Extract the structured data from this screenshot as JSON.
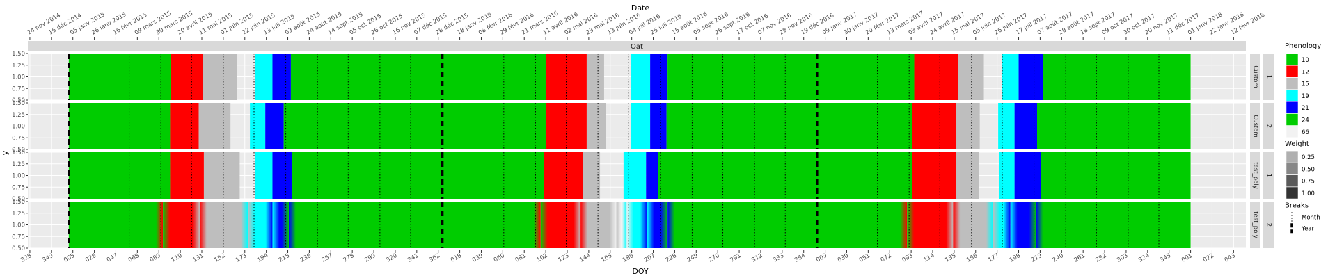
{
  "chart_data": {
    "type": "heatmap",
    "title": "",
    "top_axis_title": "Date",
    "bottom_axis_title": "DOY",
    "y_axis_title": "y",
    "facet_title": "Oat",
    "day_domain": [
      -40,
      1150
    ],
    "y_range": [
      0.5,
      1.5
    ],
    "y_ticks": [
      "1.50",
      "1.25",
      "1.00",
      "0.75",
      "0.50"
    ],
    "top_ticks": [
      {
        "day": -38,
        "label": "24 nov 2014"
      },
      {
        "day": -17,
        "label": "15 déc 2014"
      },
      {
        "day": 4,
        "label": "05 janv 2015"
      },
      {
        "day": 25,
        "label": "26 janv 2015"
      },
      {
        "day": 46,
        "label": "16 févr 2015"
      },
      {
        "day": 67,
        "label": "09 mars 2015"
      },
      {
        "day": 88,
        "label": "30 mars 2015"
      },
      {
        "day": 109,
        "label": "20 avril 2015"
      },
      {
        "day": 130,
        "label": "11 mai 2015"
      },
      {
        "day": 151,
        "label": "01 juin 2015"
      },
      {
        "day": 172,
        "label": "22 juin 2015"
      },
      {
        "day": 193,
        "label": "13 juil 2015"
      },
      {
        "day": 214,
        "label": "03 août 2015"
      },
      {
        "day": 235,
        "label": "24 août 2015"
      },
      {
        "day": 256,
        "label": "14 sept 2015"
      },
      {
        "day": 277,
        "label": "05 oct 2015"
      },
      {
        "day": 298,
        "label": "26 oct 2015"
      },
      {
        "day": 319,
        "label": "16 nov 2015"
      },
      {
        "day": 340,
        "label": "07 déc 2015"
      },
      {
        "day": 361,
        "label": "28 déc 2015"
      },
      {
        "day": 382,
        "label": "18 janv 2016"
      },
      {
        "day": 403,
        "label": "08 févr 2016"
      },
      {
        "day": 424,
        "label": "29 févr 2016"
      },
      {
        "day": 445,
        "label": "21 mars 2016"
      },
      {
        "day": 466,
        "label": "11 avril 2016"
      },
      {
        "day": 487,
        "label": "02 mai 2016"
      },
      {
        "day": 508,
        "label": "23 mai 2016"
      },
      {
        "day": 529,
        "label": "13 juin 2016"
      },
      {
        "day": 550,
        "label": "04 juil 2016"
      },
      {
        "day": 571,
        "label": "25 juil 2016"
      },
      {
        "day": 592,
        "label": "15 août 2016"
      },
      {
        "day": 613,
        "label": "05 sept 2016"
      },
      {
        "day": 634,
        "label": "26 sept 2016"
      },
      {
        "day": 655,
        "label": "17 oct 2016"
      },
      {
        "day": 676,
        "label": "07 nov 2016"
      },
      {
        "day": 697,
        "label": "28 nov 2016"
      },
      {
        "day": 718,
        "label": "19 déc 2016"
      },
      {
        "day": 739,
        "label": "09 janv 2017"
      },
      {
        "day": 760,
        "label": "30 janv 2017"
      },
      {
        "day": 781,
        "label": "20 févr 2017"
      },
      {
        "day": 802,
        "label": "13 mars 2017"
      },
      {
        "day": 823,
        "label": "03 avril 2017"
      },
      {
        "day": 844,
        "label": "24 avril 2017"
      },
      {
        "day": 865,
        "label": "15 mai 2017"
      },
      {
        "day": 886,
        "label": "05 juin 2017"
      },
      {
        "day": 907,
        "label": "26 juin 2017"
      },
      {
        "day": 928,
        "label": "17 juil 2017"
      },
      {
        "day": 949,
        "label": "07 août 2017"
      },
      {
        "day": 970,
        "label": "28 août 2017"
      },
      {
        "day": 991,
        "label": "18 sept 2017"
      },
      {
        "day": 1012,
        "label": "09 oct 2017"
      },
      {
        "day": 1033,
        "label": "30 oct 2017"
      },
      {
        "day": 1054,
        "label": "20 nov 2017"
      },
      {
        "day": 1075,
        "label": "11 déc 2017"
      },
      {
        "day": 1096,
        "label": "01 janv 2018"
      },
      {
        "day": 1117,
        "label": "22 janv 2018"
      },
      {
        "day": 1138,
        "label": "12 févr 2018"
      }
    ],
    "bottom_ticks": [
      {
        "day": -38,
        "label": "328"
      },
      {
        "day": -17,
        "label": "349"
      },
      {
        "day": 4,
        "label": "005"
      },
      {
        "day": 25,
        "label": "026"
      },
      {
        "day": 46,
        "label": "047"
      },
      {
        "day": 67,
        "label": "068"
      },
      {
        "day": 88,
        "label": "089"
      },
      {
        "day": 109,
        "label": "110"
      },
      {
        "day": 130,
        "label": "131"
      },
      {
        "day": 151,
        "label": "152"
      },
      {
        "day": 172,
        "label": "173"
      },
      {
        "day": 193,
        "label": "194"
      },
      {
        "day": 214,
        "label": "215"
      },
      {
        "day": 235,
        "label": "236"
      },
      {
        "day": 256,
        "label": "257"
      },
      {
        "day": 277,
        "label": "278"
      },
      {
        "day": 298,
        "label": "299"
      },
      {
        "day": 319,
        "label": "320"
      },
      {
        "day": 340,
        "label": "341"
      },
      {
        "day": 361,
        "label": "362"
      },
      {
        "day": 382,
        "label": "018"
      },
      {
        "day": 403,
        "label": "039"
      },
      {
        "day": 424,
        "label": "060"
      },
      {
        "day": 445,
        "label": "081"
      },
      {
        "day": 466,
        "label": "102"
      },
      {
        "day": 487,
        "label": "123"
      },
      {
        "day": 508,
        "label": "144"
      },
      {
        "day": 529,
        "label": "165"
      },
      {
        "day": 550,
        "label": "186"
      },
      {
        "day": 571,
        "label": "207"
      },
      {
        "day": 592,
        "label": "228"
      },
      {
        "day": 613,
        "label": "249"
      },
      {
        "day": 634,
        "label": "270"
      },
      {
        "day": 655,
        "label": "291"
      },
      {
        "day": 676,
        "label": "312"
      },
      {
        "day": 697,
        "label": "333"
      },
      {
        "day": 718,
        "label": "354"
      },
      {
        "day": 739,
        "label": "009"
      },
      {
        "day": 760,
        "label": "030"
      },
      {
        "day": 781,
        "label": "051"
      },
      {
        "day": 802,
        "label": "072"
      },
      {
        "day": 823,
        "label": "093"
      },
      {
        "day": 844,
        "label": "114"
      },
      {
        "day": 865,
        "label": "135"
      },
      {
        "day": 886,
        "label": "156"
      },
      {
        "day": 907,
        "label": "177"
      },
      {
        "day": 928,
        "label": "198"
      },
      {
        "day": 949,
        "label": "219"
      },
      {
        "day": 970,
        "label": "240"
      },
      {
        "day": 991,
        "label": "261"
      },
      {
        "day": 1012,
        "label": "282"
      },
      {
        "day": 1033,
        "label": "303"
      },
      {
        "day": 1054,
        "label": "324"
      },
      {
        "day": 1075,
        "label": "345"
      },
      {
        "day": 1096,
        "label": "001"
      },
      {
        "day": 1117,
        "label": "022"
      },
      {
        "day": 1138,
        "label": "043"
      }
    ],
    "year_breaks": [
      0,
      365,
      731
    ],
    "month_breaks": [
      59,
      90,
      120,
      151,
      181,
      212,
      243,
      273,
      304,
      334,
      425,
      456,
      486,
      517,
      547,
      578,
      609,
      639,
      670,
      700,
      790,
      821,
      851,
      882,
      912,
      943,
      974,
      1004,
      1035,
      1065
    ],
    "phenology_colors": {
      "10": "#00CC00",
      "12": "#FF0000",
      "15": "#BEBEBE",
      "19": "#00FFFF",
      "21": "#0000FF",
      "24": "#00CC00",
      "66": "#F2F2F2"
    },
    "panels": [
      {
        "strip": [
          "Custom",
          "1"
        ],
        "segments": [
          {
            "start": 0,
            "end": 100,
            "code": "10"
          },
          {
            "start": 100,
            "end": 131,
            "code": "12"
          },
          {
            "start": 131,
            "end": 164,
            "code": "15"
          },
          {
            "start": 182,
            "end": 199,
            "code": "19"
          },
          {
            "start": 199,
            "end": 217,
            "code": "21"
          },
          {
            "start": 217,
            "end": 466,
            "code": "24"
          },
          {
            "start": 466,
            "end": 506,
            "code": "12"
          },
          {
            "start": 506,
            "end": 523,
            "code": "15"
          },
          {
            "start": 549,
            "end": 568,
            "code": "19"
          },
          {
            "start": 568,
            "end": 585,
            "code": "21"
          },
          {
            "start": 585,
            "end": 826,
            "code": "24"
          },
          {
            "start": 826,
            "end": 869,
            "code": "12"
          },
          {
            "start": 869,
            "end": 894,
            "code": "15"
          },
          {
            "start": 912,
            "end": 928,
            "code": "19"
          },
          {
            "start": 928,
            "end": 952,
            "code": "21"
          },
          {
            "start": 952,
            "end": 1096,
            "code": "24"
          }
        ]
      },
      {
        "strip": [
          "Custom",
          "2"
        ],
        "segments": [
          {
            "start": 0,
            "end": 99,
            "code": "10"
          },
          {
            "start": 99,
            "end": 127,
            "code": "12"
          },
          {
            "start": 127,
            "end": 158,
            "code": "15"
          },
          {
            "start": 177,
            "end": 192,
            "code": "19"
          },
          {
            "start": 192,
            "end": 210,
            "code": "21"
          },
          {
            "start": 210,
            "end": 466,
            "code": "24"
          },
          {
            "start": 466,
            "end": 506,
            "code": "12"
          },
          {
            "start": 506,
            "end": 525,
            "code": "15"
          },
          {
            "start": 549,
            "end": 568,
            "code": "19"
          },
          {
            "start": 568,
            "end": 584,
            "code": "21"
          },
          {
            "start": 584,
            "end": 824,
            "code": "24"
          },
          {
            "start": 824,
            "end": 867,
            "code": "12"
          },
          {
            "start": 867,
            "end": 890,
            "code": "15"
          },
          {
            "start": 908,
            "end": 924,
            "code": "19"
          },
          {
            "start": 924,
            "end": 946,
            "code": "21"
          },
          {
            "start": 946,
            "end": 1096,
            "code": "24"
          }
        ]
      },
      {
        "strip": [
          "test_poly",
          "1"
        ],
        "segments": [
          {
            "start": 0,
            "end": 99,
            "code": "10"
          },
          {
            "start": 99,
            "end": 132,
            "code": "12"
          },
          {
            "start": 132,
            "end": 167,
            "code": "15"
          },
          {
            "start": 182,
            "end": 199,
            "code": "19"
          },
          {
            "start": 199,
            "end": 218,
            "code": "21"
          },
          {
            "start": 218,
            "end": 464,
            "code": "24"
          },
          {
            "start": 464,
            "end": 502,
            "code": "12"
          },
          {
            "start": 502,
            "end": 519,
            "code": "15"
          },
          {
            "start": 542,
            "end": 564,
            "code": "19"
          },
          {
            "start": 564,
            "end": 576,
            "code": "21"
          },
          {
            "start": 576,
            "end": 824,
            "code": "24"
          },
          {
            "start": 824,
            "end": 867,
            "code": "12"
          },
          {
            "start": 867,
            "end": 889,
            "code": "15"
          },
          {
            "start": 909,
            "end": 924,
            "code": "19"
          },
          {
            "start": 924,
            "end": 950,
            "code": "21"
          },
          {
            "start": 950,
            "end": 1096,
            "code": "24"
          }
        ]
      },
      {
        "strip": [
          "test_poly",
          "2"
        ],
        "segments": [
          {
            "start": 0,
            "end": 92,
            "code": "10"
          },
          {
            "start": 92,
            "end": 128,
            "code": "12"
          },
          {
            "start": 128,
            "end": 175,
            "code": "15"
          },
          {
            "start": 175,
            "end": 199,
            "code": "19"
          },
          {
            "start": 199,
            "end": 215,
            "code": "21"
          },
          {
            "start": 215,
            "end": 461,
            "code": "24"
          },
          {
            "start": 461,
            "end": 500,
            "code": "12"
          },
          {
            "start": 500,
            "end": 535,
            "code": "15"
          },
          {
            "start": 535,
            "end": 545,
            "code": "66"
          },
          {
            "start": 545,
            "end": 565,
            "code": "19"
          },
          {
            "start": 565,
            "end": 585,
            "code": "21"
          },
          {
            "start": 585,
            "end": 819,
            "code": "24"
          },
          {
            "start": 819,
            "end": 864,
            "code": "12"
          },
          {
            "start": 864,
            "end": 903,
            "code": "15"
          },
          {
            "start": 903,
            "end": 920,
            "code": "19"
          },
          {
            "start": 920,
            "end": 945,
            "code": "21"
          },
          {
            "start": 945,
            "end": 1096,
            "code": "24"
          }
        ]
      }
    ],
    "legend_phenology": {
      "title": "Phenology",
      "items": [
        {
          "label": "10",
          "color": "#00CC00"
        },
        {
          "label": "12",
          "color": "#FF0000"
        },
        {
          "label": "15",
          "color": "#BEBEBE"
        },
        {
          "label": "19",
          "color": "#00FFFF"
        },
        {
          "label": "21",
          "color": "#0000FF"
        },
        {
          "label": "24",
          "color": "#00CC00"
        },
        {
          "label": "66",
          "color": "#F2F2F2"
        }
      ]
    },
    "legend_weight": {
      "title": "Weight",
      "items": [
        {
          "label": "0.25",
          "color": "#B0B0B0"
        },
        {
          "label": "0.50",
          "color": "#888888"
        },
        {
          "label": "0.75",
          "color": "#5A5A5A"
        },
        {
          "label": "1.00",
          "color": "#333333"
        }
      ]
    },
    "legend_breaks": {
      "title": "Breaks",
      "items": [
        {
          "label": "Month",
          "style": "dotted"
        },
        {
          "label": "Year",
          "style": "dashed"
        }
      ]
    }
  }
}
